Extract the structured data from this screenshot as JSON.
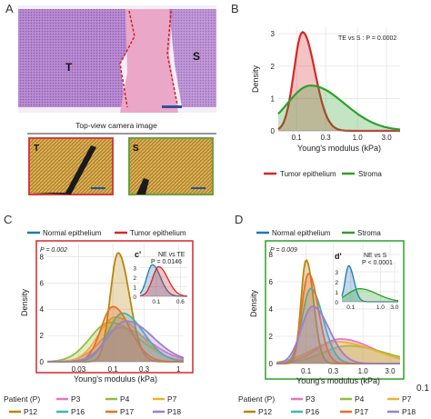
{
  "panels": {
    "a": {
      "label": "A",
      "region_labels": [
        "T",
        "S"
      ],
      "camera_caption": "Top-view camera image",
      "camera_labels": [
        "T",
        "S"
      ],
      "colors": {
        "tissue": "#a06ac0",
        "stroma": "#e8a0c0",
        "boundary": "#d02020",
        "frame_t": "#d04040",
        "frame_s": "#6aa040",
        "camera": "#c8a040"
      }
    },
    "b": {
      "label": "B",
      "annotation": "TE vs S : P = 0.0002",
      "legend": [
        "Tumor epithelium",
        "Stroma"
      ],
      "colors": {
        "tumor": "#d62728",
        "stroma": "#2ca02c"
      }
    },
    "c": {
      "label": "C",
      "legend_top": [
        "Normal epithelium",
        "Tumor epithelium"
      ],
      "p_text": "P = 0.002",
      "inset_label": "c'",
      "inset_annotation": [
        "NE vs TE",
        "P = 0.0146"
      ],
      "frame_color": "#d62728"
    },
    "d": {
      "label": "D",
      "legend_top": [
        "Normal epithelium",
        "Stroma"
      ],
      "p_text": "P = 0.009",
      "inset_label": "d'",
      "inset_annotation": [
        "NE vs S",
        "P < 0.0001"
      ],
      "frame_color": "#2ca02c",
      "clipped_text": "0.1"
    },
    "patients": {
      "title": "Patient (P)",
      "left": [
        {
          "name": "P3",
          "color": "#e377c2"
        },
        {
          "name": "P4",
          "color": "#8fbf40"
        },
        {
          "name": "P7",
          "color": "#f0b030"
        },
        {
          "name": "P12",
          "color": "#b8860b"
        },
        {
          "name": "P16",
          "color": "#3cb8b0"
        },
        {
          "name": "P17",
          "color": "#e8702a"
        },
        {
          "name": "P18",
          "color": "#9b7fd0"
        }
      ],
      "right": [
        {
          "name": "P3",
          "color": "#e377c2"
        },
        {
          "name": "P4",
          "color": "#8fbf40"
        },
        {
          "name": "P7",
          "color": "#f0b030"
        },
        {
          "name": "P12",
          "color": "#b8860b"
        },
        {
          "name": "P16",
          "color": "#3cb8b0"
        },
        {
          "name": "P17",
          "color": "#e8702a"
        },
        {
          "name": "P18",
          "color": "#9b7fd0"
        }
      ]
    }
  },
  "chart_data": [
    {
      "id": "B",
      "type": "area",
      "title": "",
      "xlabel": "Young's modulus (kPa)",
      "ylabel": "Density",
      "x_scale": "log",
      "xlim": [
        0.05,
        5
      ],
      "ylim": [
        0,
        3.2
      ],
      "x_ticks": [
        "0.1",
        "0.3",
        "1.0",
        "3.0"
      ],
      "x_tick_values": [
        0.1,
        0.3,
        1.0,
        3.0
      ],
      "y_ticks": [
        0,
        1,
        2,
        3
      ],
      "grid": true,
      "series": [
        {
          "name": "Tumor epithelium",
          "color": "#d62728",
          "curve": {
            "mu": 0.125,
            "sigma": 0.14,
            "height": 3.05
          }
        },
        {
          "name": "Stroma",
          "color": "#2ca02c",
          "curve": {
            "mu": 0.17,
            "sigma": 0.38,
            "height": 1.4
          }
        }
      ]
    },
    {
      "id": "C",
      "type": "area",
      "xlabel": "Young's modulus (kPa)",
      "ylabel": "Density",
      "x_scale": "log",
      "xlim": [
        0.01,
        1.2
      ],
      "ylim": [
        0,
        9
      ],
      "x_ticks": [
        "0.03",
        "0.1",
        "0.3",
        "1"
      ],
      "x_tick_values": [
        0.03,
        0.1,
        0.3,
        1
      ],
      "y_ticks": [
        0,
        2,
        4,
        6,
        8
      ],
      "grid": true,
      "series": [
        {
          "name": "P3",
          "color": "#e377c2",
          "curve": {
            "mu": 0.13,
            "sigma": 0.3,
            "height": 2.6
          }
        },
        {
          "name": "P4",
          "color": "#8fbf40",
          "curve": {
            "mu": 0.09,
            "sigma": 0.3,
            "height": 3.0
          }
        },
        {
          "name": "P7",
          "color": "#f0b030",
          "curve": {
            "mu": 0.11,
            "sigma": 0.26,
            "height": 3.4
          }
        },
        {
          "name": "P12",
          "color": "#b8860b",
          "curve": {
            "mu": 0.12,
            "sigma": 0.12,
            "height": 8.3
          }
        },
        {
          "name": "P16",
          "color": "#3cb8b0",
          "curve": {
            "mu": 0.14,
            "sigma": 0.22,
            "height": 3.7
          }
        },
        {
          "name": "P17",
          "color": "#e8702a",
          "curve": {
            "mu": 0.1,
            "sigma": 0.18,
            "height": 4.2
          }
        },
        {
          "name": "P18",
          "color": "#9b7fd0",
          "curve": {
            "mu": 0.16,
            "sigma": 0.28,
            "height": 3.1
          }
        }
      ],
      "inset": {
        "label": "c'",
        "x_scale": "log",
        "xlim": [
          0.03,
          1.0
        ],
        "ylim": [
          0,
          4
        ],
        "x_ticks": [
          "0.1",
          "0.6"
        ],
        "x_tick_values": [
          0.1,
          0.6
        ],
        "y_ticks": [
          0,
          1,
          2,
          3
        ],
        "series": [
          {
            "name": "Normal epithelium",
            "color": "#1f77b4",
            "curve": {
              "mu": 0.075,
              "sigma": 0.18,
              "height": 3.3
            }
          },
          {
            "name": "Tumor epithelium",
            "color": "#d62728",
            "curve": {
              "mu": 0.12,
              "sigma": 0.2,
              "height": 3.1
            }
          }
        ]
      }
    },
    {
      "id": "D",
      "type": "area",
      "xlabel": "Young's modulus (kPa)",
      "ylabel": "Density",
      "x_scale": "log",
      "xlim": [
        0.03,
        4.5
      ],
      "ylim": [
        0,
        8.8
      ],
      "x_ticks": [
        "0.1",
        "0.3",
        "1.0",
        "3.0"
      ],
      "x_tick_values": [
        0.1,
        0.3,
        1.0,
        3.0
      ],
      "y_ticks": [
        0,
        2,
        4,
        6,
        8
      ],
      "grid": true,
      "series": [
        {
          "name": "P3",
          "color": "#e377c2",
          "curve": {
            "mu": 0.4,
            "sigma": 0.4,
            "height": 1.8
          }
        },
        {
          "name": "P4",
          "color": "#8fbf40",
          "curve": {
            "mu": 0.55,
            "sigma": 0.45,
            "height": 1.3
          }
        },
        {
          "name": "P7",
          "color": "#f0b030",
          "curve": {
            "mu": 0.35,
            "sigma": 0.45,
            "height": 1.6
          }
        },
        {
          "name": "P12",
          "color": "#b8860b",
          "curve": {
            "mu": 0.1,
            "sigma": 0.09,
            "height": 7.6
          }
        },
        {
          "name": "P16",
          "color": "#3cb8b0",
          "curve": {
            "mu": 0.12,
            "sigma": 0.15,
            "height": 5.5
          }
        },
        {
          "name": "P17",
          "color": "#e8702a",
          "curve": {
            "mu": 0.11,
            "sigma": 0.12,
            "height": 6.6
          }
        },
        {
          "name": "P18",
          "color": "#9b7fd0",
          "curve": {
            "mu": 0.13,
            "sigma": 0.2,
            "height": 4.2
          }
        }
      ],
      "inset": {
        "label": "d'",
        "x_scale": "log",
        "xlim": [
          0.05,
          4.0
        ],
        "ylim": [
          0,
          4
        ],
        "x_ticks": [
          "0.1",
          "1.0",
          "3.0"
        ],
        "x_tick_values": [
          0.1,
          1.0,
          3.0
        ],
        "y_ticks": [
          0,
          1,
          2,
          3
        ],
        "series": [
          {
            "name": "Normal epithelium",
            "color": "#1f77b4",
            "curve": {
              "mu": 0.085,
              "sigma": 0.12,
              "height": 3.6
            }
          },
          {
            "name": "Stroma",
            "color": "#2ca02c",
            "curve": {
              "mu": 0.2,
              "sigma": 0.4,
              "height": 1.3
            }
          }
        ]
      }
    }
  ]
}
